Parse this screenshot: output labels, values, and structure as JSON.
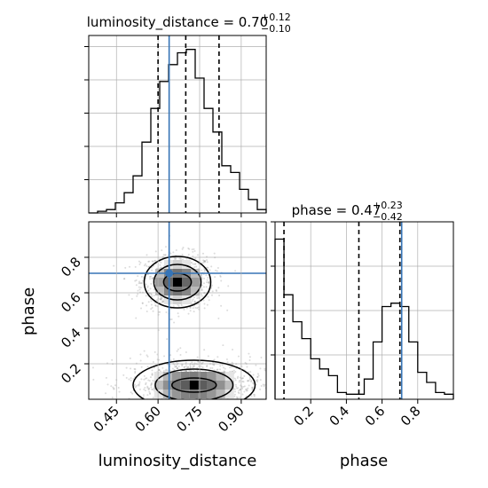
{
  "chart_data": {
    "type": "corner",
    "colors": {
      "truth": "#3674b6",
      "hist": "#000000",
      "grid": "#b0b0b0",
      "points": "#9a9a9a"
    },
    "panels": [
      {
        "id": "luminosity_distance-hist",
        "type": "histogram",
        "title": "luminosity_distance = 0.70",
        "title_sup": "+0.12",
        "title_sub": "−0.10",
        "xlim": [
          0.35,
          0.99
        ],
        "quantiles": [
          0.6,
          0.7,
          0.82
        ],
        "truth": 0.64,
        "bin_edges": [
          0.35,
          0.382,
          0.414,
          0.446,
          0.478,
          0.51,
          0.542,
          0.574,
          0.606,
          0.638,
          0.67,
          0.702,
          0.734,
          0.766,
          0.798,
          0.83,
          0.862,
          0.894,
          0.926,
          0.958,
          0.99
        ],
        "counts": [
          0,
          1,
          2,
          6,
          12,
          22,
          42,
          62,
          78,
          88,
          95,
          97,
          80,
          62,
          48,
          28,
          24,
          14,
          8,
          2
        ],
        "ylim": [
          0,
          100
        ]
      },
      {
        "id": "phase-hist",
        "type": "histogram",
        "title": "phase = 0.47",
        "title_sup": "+0.23",
        "title_sub": "−0.42",
        "xlim": [
          0.0,
          1.0
        ],
        "quantiles": [
          0.05,
          0.47,
          0.7
        ],
        "truth": 0.71,
        "bin_edges": [
          0.0,
          0.05,
          0.1,
          0.15,
          0.2,
          0.25,
          0.3,
          0.35,
          0.4,
          0.45,
          0.5,
          0.55,
          0.6,
          0.65,
          0.7,
          0.75,
          0.8,
          0.85,
          0.9,
          0.95,
          1.0
        ],
        "counts": [
          95,
          62,
          46,
          36,
          24,
          18,
          14,
          4,
          3,
          3,
          12,
          34,
          55,
          57,
          55,
          34,
          16,
          10,
          4,
          3
        ],
        "ylim": [
          0,
          100
        ]
      },
      {
        "id": "joint",
        "type": "2d-hist-contour",
        "x_label": "luminosity_distance",
        "y_label": "phase",
        "xlim": [
          0.35,
          0.99
        ],
        "ylim": [
          0.0,
          1.0
        ],
        "truth": [
          0.64,
          0.71
        ],
        "modes": [
          {
            "cx": 0.67,
            "cy": 0.66,
            "rx": [
              0.05,
              0.085,
              0.12
            ],
            "ry": [
              0.05,
              0.1,
              0.145
            ]
          },
          {
            "cx": 0.73,
            "cy": 0.08,
            "rx": [
              0.08,
              0.14,
              0.22
            ],
            "ry": [
              0.04,
              0.09,
              0.14
            ]
          }
        ]
      }
    ],
    "x_ticks": {
      "luminosity_distance": [
        "0.45",
        "0.60",
        "0.75",
        "0.90"
      ],
      "phase": [
        "0.2",
        "0.4",
        "0.6",
        "0.8"
      ]
    },
    "x_tick_values": {
      "luminosity_distance": [
        0.45,
        0.6,
        0.75,
        0.9
      ],
      "phase": [
        0.2,
        0.4,
        0.6,
        0.8
      ]
    },
    "y_ticks": {
      "phase": [
        "0.2",
        "0.4",
        "0.6",
        "0.8"
      ]
    },
    "y_tick_values": {
      "phase": [
        0.2,
        0.4,
        0.6,
        0.8
      ]
    }
  }
}
